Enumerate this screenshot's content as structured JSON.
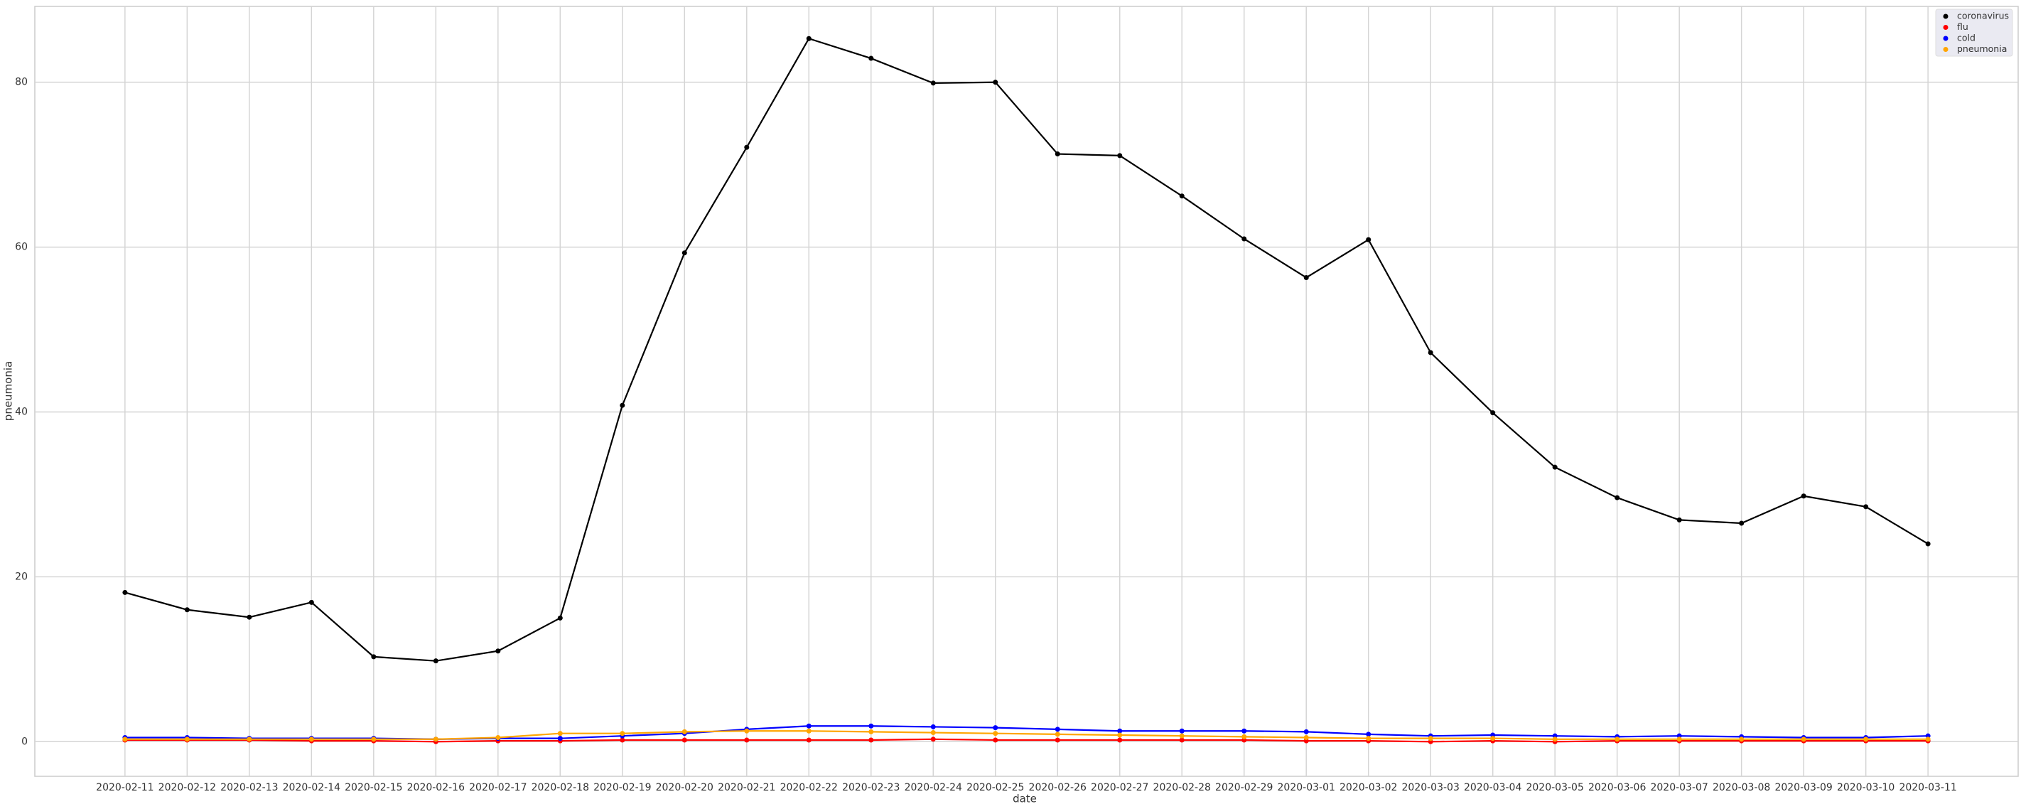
{
  "chart_data": {
    "type": "line",
    "x_label": "date",
    "y_label": "pneumonia",
    "categories": [
      "2020-02-11",
      "2020-02-12",
      "2020-02-13",
      "2020-02-14",
      "2020-02-15",
      "2020-02-16",
      "2020-02-17",
      "2020-02-18",
      "2020-02-19",
      "2020-02-20",
      "2020-02-21",
      "2020-02-22",
      "2020-02-23",
      "2020-02-24",
      "2020-02-25",
      "2020-02-26",
      "2020-02-27",
      "2020-02-28",
      "2020-02-29",
      "2020-03-01",
      "2020-03-02",
      "2020-03-03",
      "2020-03-04",
      "2020-03-05",
      "2020-03-06",
      "2020-03-07",
      "2020-03-08",
      "2020-03-09",
      "2020-03-10",
      "2020-03-11"
    ],
    "series": [
      {
        "name": "coronavirus",
        "color": "#000000",
        "values": [
          18.1,
          16.0,
          15.1,
          16.9,
          10.3,
          9.8,
          11.0,
          15.0,
          40.8,
          59.3,
          72.1,
          85.3,
          82.9,
          79.9,
          80.0,
          71.3,
          71.1,
          66.2,
          61.0,
          56.3,
          60.9,
          47.2,
          39.9,
          33.3,
          29.6,
          26.9,
          26.5,
          29.8,
          28.5,
          24.0
        ]
      },
      {
        "name": "flu",
        "color": "#ff0000",
        "values": [
          0.2,
          0.2,
          0.2,
          0.1,
          0.1,
          0.0,
          0.1,
          0.1,
          0.2,
          0.2,
          0.2,
          0.2,
          0.2,
          0.3,
          0.2,
          0.2,
          0.2,
          0.2,
          0.2,
          0.1,
          0.1,
          0.0,
          0.1,
          0.0,
          0.1,
          0.1,
          0.1,
          0.1,
          0.1,
          0.1
        ]
      },
      {
        "name": "cold",
        "color": "#0000ff",
        "values": [
          0.5,
          0.5,
          0.4,
          0.4,
          0.4,
          0.3,
          0.4,
          0.4,
          0.7,
          1.0,
          1.5,
          1.9,
          1.9,
          1.8,
          1.7,
          1.5,
          1.3,
          1.3,
          1.3,
          1.2,
          0.9,
          0.7,
          0.8,
          0.7,
          0.6,
          0.7,
          0.6,
          0.5,
          0.5,
          0.7
        ]
      },
      {
        "name": "pneumonia",
        "color": "#ffa500",
        "values": [
          0.3,
          0.3,
          0.3,
          0.3,
          0.3,
          0.3,
          0.5,
          1.0,
          1.0,
          1.2,
          1.3,
          1.3,
          1.2,
          1.1,
          1.0,
          0.9,
          0.8,
          0.7,
          0.6,
          0.5,
          0.4,
          0.4,
          0.4,
          0.3,
          0.3,
          0.3,
          0.3,
          0.3,
          0.3,
          0.3
        ]
      }
    ],
    "ylim": [
      -4.2,
      89.2
    ],
    "yticks": [
      0,
      20,
      40,
      60,
      80
    ],
    "grid": true,
    "legend": "upper right"
  }
}
